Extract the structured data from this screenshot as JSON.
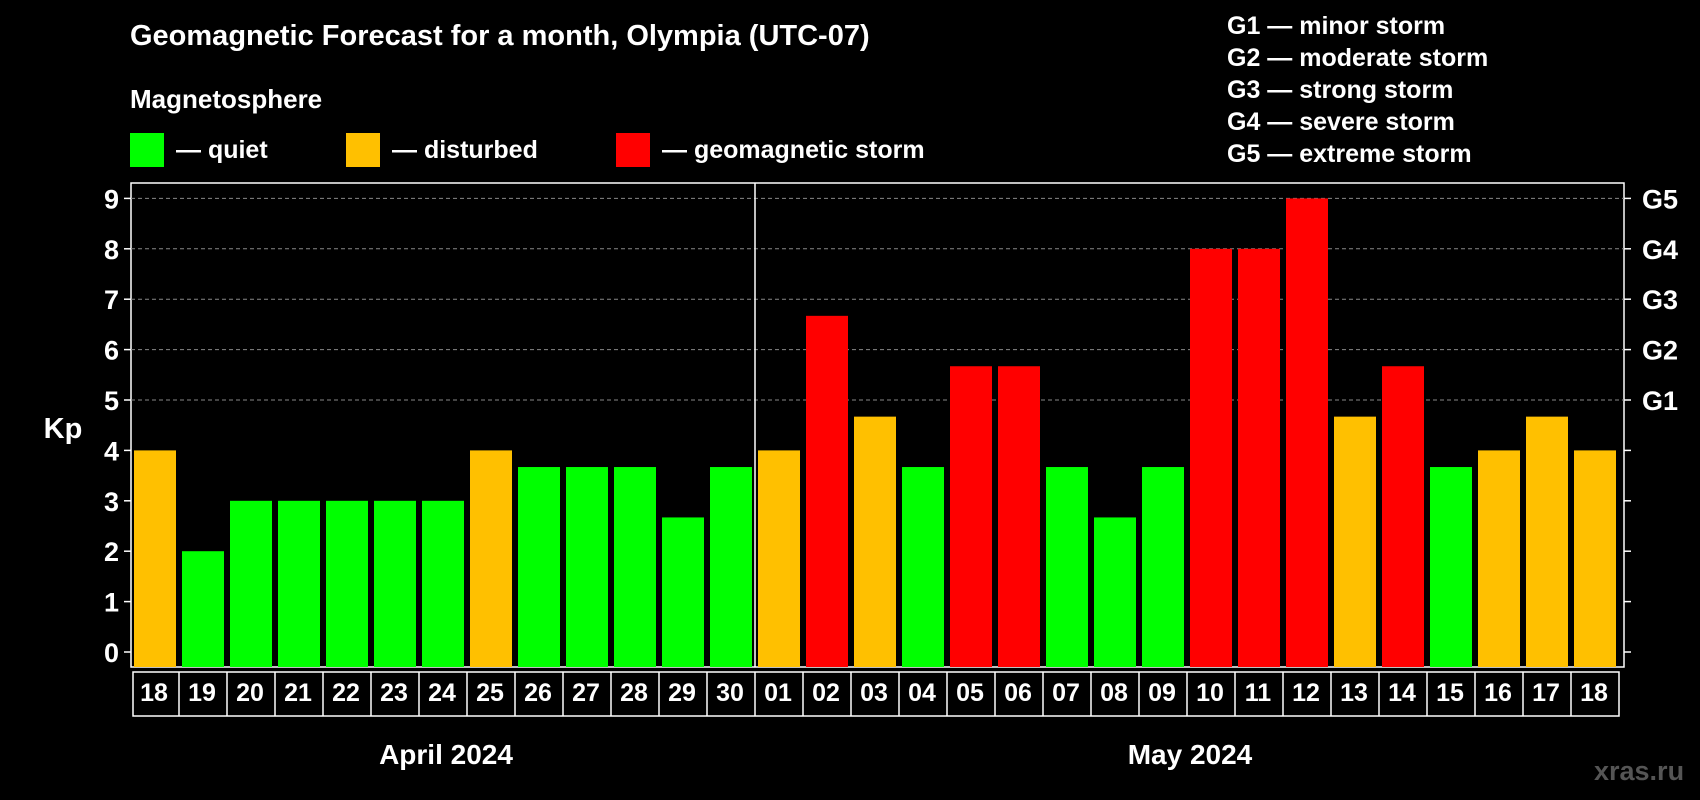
{
  "header": {
    "title": "Geomagnetic Forecast for a month, Olympia (UTC-07)",
    "subtitle": "Magnetosphere"
  },
  "legend": {
    "items": [
      {
        "label": "— quiet",
        "color": "#00ff00"
      },
      {
        "label": "— disturbed",
        "color": "#ffc000"
      },
      {
        "label": "— geomagnetic storm",
        "color": "#ff0000"
      }
    ]
  },
  "storm_scale": [
    "G1 — minor storm",
    "G2 — moderate storm",
    "G3 — strong storm",
    "G4 — severe storm",
    "G5 — extreme storm"
  ],
  "watermark": "xras.ru",
  "chart_data": {
    "type": "bar",
    "ylabel": "Kp",
    "ylim": [
      0,
      9
    ],
    "yticks": [
      "0",
      "1",
      "2",
      "3",
      "4",
      "5",
      "6",
      "7",
      "8",
      "9"
    ],
    "right_ticks": [
      {
        "kp": 5,
        "label": "G1"
      },
      {
        "kp": 6,
        "label": "G2"
      },
      {
        "kp": 7,
        "label": "G3"
      },
      {
        "kp": 8,
        "label": "G4"
      },
      {
        "kp": 9,
        "label": "G5"
      }
    ],
    "grid": "dashed horizontal at 5-9",
    "categories": [
      "18",
      "19",
      "20",
      "21",
      "22",
      "23",
      "24",
      "25",
      "26",
      "27",
      "28",
      "29",
      "30",
      "01",
      "02",
      "03",
      "04",
      "05",
      "06",
      "07",
      "08",
      "09",
      "10",
      "11",
      "12",
      "13",
      "14",
      "15",
      "16",
      "17",
      "18"
    ],
    "values": [
      4,
      2,
      3,
      3,
      3,
      3,
      3,
      4,
      3.67,
      3.67,
      3.67,
      2.67,
      3.67,
      4,
      6.67,
      4.67,
      3.67,
      5.67,
      5.67,
      3.67,
      2.67,
      3.67,
      8,
      8,
      9,
      4.67,
      5.67,
      3.67,
      4,
      4.67,
      4
    ],
    "status": [
      "disturbed",
      "quiet",
      "quiet",
      "quiet",
      "quiet",
      "quiet",
      "quiet",
      "disturbed",
      "quiet",
      "quiet",
      "quiet",
      "quiet",
      "quiet",
      "disturbed",
      "storm",
      "disturbed",
      "quiet",
      "storm",
      "storm",
      "quiet",
      "quiet",
      "quiet",
      "storm",
      "storm",
      "storm",
      "disturbed",
      "storm",
      "quiet",
      "disturbed",
      "disturbed",
      "disturbed"
    ],
    "status_colors": {
      "quiet": "#00ff00",
      "disturbed": "#ffc000",
      "storm": "#ff0000"
    },
    "months": [
      {
        "label": "April 2024",
        "start": 0,
        "count": 13
      },
      {
        "label": "May 2024",
        "start": 13,
        "count": 18
      }
    ]
  }
}
